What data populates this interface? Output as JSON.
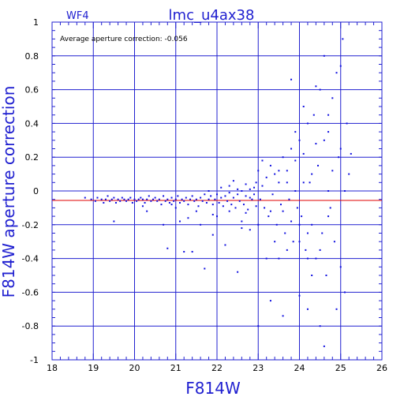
{
  "chart_data": {
    "type": "scatter",
    "title": "lmc_u4ax38",
    "chip_label": "WF4",
    "xlabel": "F814W",
    "ylabel": "F814W aperture correction",
    "annotation": "Average aperture correction:  -0.056",
    "average_line": -0.056,
    "xlim": [
      18,
      26
    ],
    "ylim": [
      -1,
      1
    ],
    "x_ticks": [
      "18",
      "19",
      "20",
      "21",
      "22",
      "23",
      "24",
      "25",
      "26"
    ],
    "y_ticks": [
      "1",
      "0.8",
      "0.6",
      "0.4",
      "0.2",
      "0",
      "-0.2",
      "-0.4",
      "-0.6",
      "-0.8",
      "-1"
    ],
    "grid": true,
    "colors": {
      "axes": "#2020d0",
      "points": "#1010e0",
      "average_line": "#e00000",
      "ticks": "#000000"
    },
    "points": [
      [
        18.8,
        -0.04
      ],
      [
        18.95,
        -0.05
      ],
      [
        19.05,
        -0.06
      ],
      [
        19.1,
        -0.04
      ],
      [
        19.2,
        -0.05
      ],
      [
        19.25,
        -0.07
      ],
      [
        19.3,
        -0.05
      ],
      [
        19.35,
        -0.03
      ],
      [
        19.4,
        -0.06
      ],
      [
        19.45,
        -0.05
      ],
      [
        19.5,
        -0.04
      ],
      [
        19.55,
        -0.07
      ],
      [
        19.6,
        -0.05
      ],
      [
        19.65,
        -0.06
      ],
      [
        19.7,
        -0.04
      ],
      [
        19.75,
        -0.05
      ],
      [
        19.8,
        -0.06
      ],
      [
        19.85,
        -0.05
      ],
      [
        19.9,
        -0.04
      ],
      [
        19.95,
        -0.07
      ],
      [
        20.0,
        -0.05
      ],
      [
        20.05,
        -0.06
      ],
      [
        20.1,
        -0.05
      ],
      [
        20.15,
        -0.04
      ],
      [
        20.2,
        -0.05
      ],
      [
        20.25,
        -0.07
      ],
      [
        20.3,
        -0.05
      ],
      [
        20.35,
        -0.03
      ],
      [
        20.4,
        -0.06
      ],
      [
        20.45,
        -0.05
      ],
      [
        20.5,
        -0.04
      ],
      [
        20.55,
        -0.06
      ],
      [
        20.6,
        -0.05
      ],
      [
        20.65,
        -0.08
      ],
      [
        20.7,
        -0.03
      ],
      [
        20.75,
        -0.06
      ],
      [
        20.8,
        -0.05
      ],
      [
        20.85,
        -0.07
      ],
      [
        20.9,
        -0.04
      ],
      [
        20.95,
        -0.06
      ],
      [
        21.0,
        -0.05
      ],
      [
        21.05,
        -0.03
      ],
      [
        21.1,
        -0.07
      ],
      [
        21.15,
        -0.05
      ],
      [
        21.2,
        -0.06
      ],
      [
        21.25,
        -0.04
      ],
      [
        21.3,
        -0.08
      ],
      [
        21.35,
        -0.05
      ],
      [
        21.4,
        -0.03
      ],
      [
        21.45,
        -0.06
      ],
      [
        21.5,
        -0.05
      ],
      [
        21.55,
        -0.09
      ],
      [
        21.6,
        -0.04
      ],
      [
        21.65,
        -0.06
      ],
      [
        21.7,
        -0.02
      ],
      [
        21.75,
        -0.07
      ],
      [
        21.8,
        -0.05
      ],
      [
        21.85,
        -0.03
      ],
      [
        21.9,
        -0.08
      ],
      [
        21.95,
        -0.05
      ],
      [
        22.0,
        -0.02
      ],
      [
        22.05,
        -0.07
      ],
      [
        22.1,
        -0.04
      ],
      [
        22.15,
        -0.09
      ],
      [
        22.2,
        -0.03
      ],
      [
        22.25,
        -0.06
      ],
      [
        22.3,
        -0.01
      ],
      [
        22.35,
        -0.08
      ],
      [
        22.4,
        -0.04
      ],
      [
        22.45,
        -0.1
      ],
      [
        22.5,
        -0.02
      ],
      [
        22.55,
        -0.06
      ],
      [
        22.6,
        0.0
      ],
      [
        22.65,
        -0.08
      ],
      [
        22.7,
        -0.03
      ],
      [
        22.75,
        -0.11
      ],
      [
        22.8,
        0.01
      ],
      [
        22.85,
        -0.05
      ],
      [
        22.9,
        -0.02
      ],
      [
        22.95,
        -0.09
      ],
      [
        19.5,
        -0.18
      ],
      [
        20.3,
        -0.12
      ],
      [
        20.7,
        -0.2
      ],
      [
        20.8,
        -0.34
      ],
      [
        21.1,
        -0.18
      ],
      [
        21.2,
        -0.36
      ],
      [
        21.4,
        -0.36
      ],
      [
        21.6,
        -0.2
      ],
      [
        21.7,
        -0.46
      ],
      [
        21.9,
        -0.26
      ],
      [
        22.2,
        -0.32
      ],
      [
        22.5,
        -0.48
      ],
      [
        22.8,
        -0.23
      ],
      [
        21.3,
        -0.16
      ],
      [
        22.0,
        -0.15
      ],
      [
        22.6,
        -0.18
      ],
      [
        21.8,
        0.0
      ],
      [
        22.1,
        0.02
      ],
      [
        22.3,
        0.03
      ],
      [
        22.5,
        0.01
      ],
      [
        22.7,
        0.04
      ],
      [
        22.9,
        0.02
      ],
      [
        23.0,
        0.12
      ],
      [
        22.95,
        0.05
      ],
      [
        23.05,
        -0.05
      ],
      [
        23.1,
        0.03
      ],
      [
        23.15,
        -0.1
      ],
      [
        23.2,
        0.08
      ],
      [
        23.25,
        -0.15
      ],
      [
        23.3,
        0.15
      ],
      [
        23.35,
        -0.02
      ],
      [
        23.4,
        0.1
      ],
      [
        23.45,
        -0.2
      ],
      [
        23.5,
        0.05
      ],
      [
        23.55,
        -0.08
      ],
      [
        23.6,
        0.2
      ],
      [
        23.65,
        -0.25
      ],
      [
        23.7,
        0.12
      ],
      [
        23.75,
        -0.05
      ],
      [
        23.8,
        0.25
      ],
      [
        23.85,
        -0.3
      ],
      [
        23.9,
        0.18
      ],
      [
        23.95,
        -0.1
      ],
      [
        24.0,
        0.3
      ],
      [
        24.05,
        -0.15
      ],
      [
        24.1,
        0.22
      ],
      [
        24.15,
        -0.35
      ],
      [
        24.2,
        0.4
      ],
      [
        24.25,
        0.05
      ],
      [
        24.3,
        -0.2
      ],
      [
        24.35,
        0.45
      ],
      [
        24.4,
        -0.4
      ],
      [
        24.45,
        0.15
      ],
      [
        24.5,
        0.6
      ],
      [
        24.55,
        -0.25
      ],
      [
        24.6,
        0.8
      ],
      [
        24.65,
        -0.5
      ],
      [
        24.7,
        0.35
      ],
      [
        24.75,
        -0.1
      ],
      [
        24.8,
        0.55
      ],
      [
        24.85,
        -0.3
      ],
      [
        24.9,
        0.7
      ],
      [
        24.95,
        0.2
      ],
      [
        25.0,
        -0.45
      ],
      [
        25.05,
        0.9
      ],
      [
        25.1,
        -0.6
      ],
      [
        25.15,
        0.4
      ],
      [
        25.2,
        0.1
      ],
      [
        25.25,
        0.22
      ],
      [
        24.2,
        -0.4
      ],
      [
        24.0,
        -0.3
      ],
      [
        23.9,
        0.35
      ],
      [
        23.3,
        -0.65
      ],
      [
        23.0,
        -0.8
      ],
      [
        23.6,
        -0.74
      ],
      [
        24.0,
        -0.62
      ],
      [
        24.3,
        -0.5
      ],
      [
        24.5,
        -0.8
      ],
      [
        24.6,
        -0.92
      ],
      [
        24.9,
        -0.7
      ],
      [
        23.8,
        0.66
      ],
      [
        24.2,
        -0.7
      ],
      [
        23.5,
        -0.4
      ],
      [
        23.7,
        -0.35
      ],
      [
        24.1,
        0.05
      ],
      [
        24.3,
        0.1
      ],
      [
        24.4,
        0.28
      ],
      [
        24.6,
        0.3
      ],
      [
        24.7,
        0.0
      ],
      [
        24.8,
        0.12
      ],
      [
        25.0,
        0.25
      ],
      [
        25.1,
        0.0
      ],
      [
        24.1,
        0.5
      ],
      [
        24.4,
        0.62
      ],
      [
        24.7,
        0.45
      ],
      [
        25.0,
        0.74
      ],
      [
        23.2,
        -0.4
      ],
      [
        23.4,
        -0.3
      ],
      [
        23.6,
        -0.12
      ],
      [
        23.8,
        -0.18
      ],
      [
        24.0,
        -0.2
      ],
      [
        24.2,
        -0.25
      ],
      [
        24.5,
        -0.35
      ],
      [
        24.7,
        -0.15
      ],
      [
        22.4,
        0.06
      ],
      [
        22.6,
        -0.22
      ],
      [
        22.8,
        -0.04
      ],
      [
        23.1,
        0.18
      ],
      [
        23.3,
        -0.12
      ],
      [
        23.5,
        0.12
      ],
      [
        23.7,
        0.05
      ],
      [
        23.9,
        0.0
      ],
      [
        21.0,
        -0.1
      ],
      [
        21.5,
        -0.12
      ],
      [
        21.9,
        -0.14
      ],
      [
        22.3,
        -0.12
      ],
      [
        22.7,
        -0.13
      ],
      [
        23.0,
        -0.2
      ],
      [
        20.9,
        -0.08
      ],
      [
        20.2,
        -0.09
      ]
    ]
  }
}
